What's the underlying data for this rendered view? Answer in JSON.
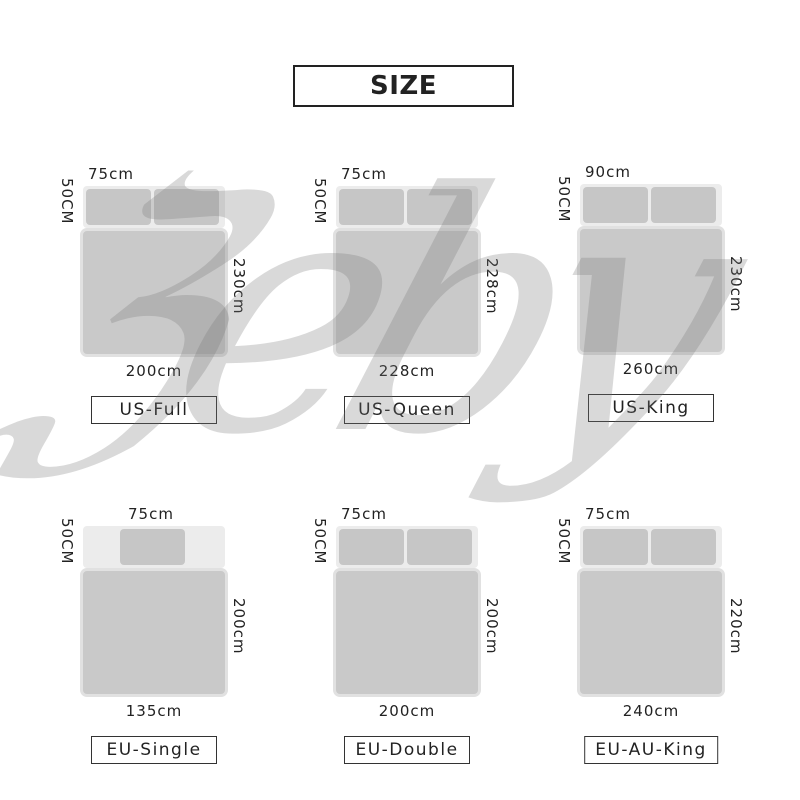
{
  "title": "SIZE",
  "watermark": "Zeby",
  "colors": {
    "duvet": "#c9c9c9",
    "pillow": "#c6c6c6",
    "border": "#222222"
  },
  "sizes": [
    {
      "name": "US-Full",
      "pillow_width": "75cm",
      "pillow_height": "50CM",
      "length": "230cm",
      "width": "200cm",
      "pillows": 2
    },
    {
      "name": "US-Queen",
      "pillow_width": "75cm",
      "pillow_height": "50CM",
      "length": "228cm",
      "width": "228cm",
      "pillows": 2
    },
    {
      "name": "US-King",
      "pillow_width": "90cm",
      "pillow_height": "50CM",
      "length": "230cm",
      "width": "260cm",
      "pillows": 2
    },
    {
      "name": "EU-Single",
      "pillow_width": "75cm",
      "pillow_height": "50CM",
      "length": "200cm",
      "width": "135cm",
      "pillows": 1
    },
    {
      "name": "EU-Double",
      "pillow_width": "75cm",
      "pillow_height": "50CM",
      "length": "200cm",
      "width": "200cm",
      "pillows": 2
    },
    {
      "name": "EU-AU-King",
      "pillow_width": "75cm",
      "pillow_height": "50CM",
      "length": "220cm",
      "width": "240cm",
      "pillows": 2
    }
  ]
}
